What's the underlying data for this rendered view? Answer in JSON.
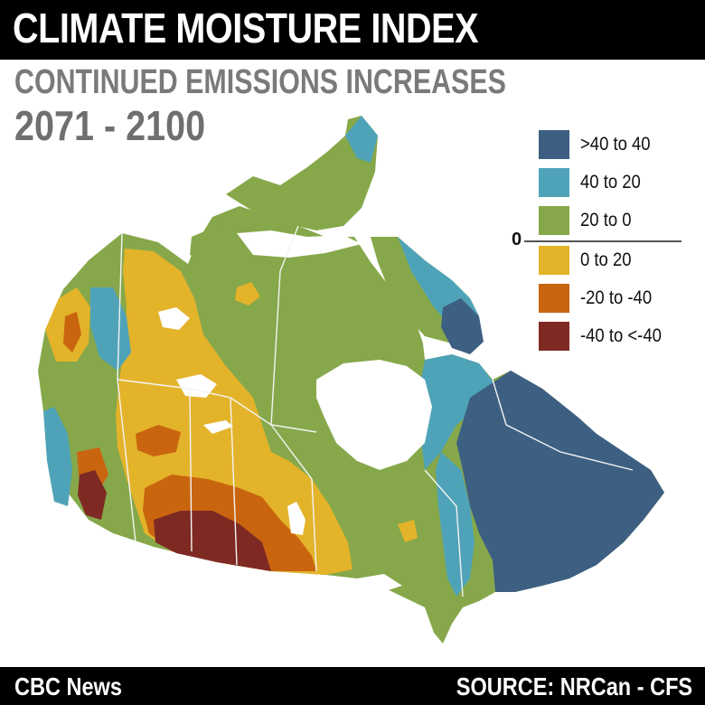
{
  "header": {
    "title": "CLIMATE MOISTURE INDEX",
    "subtitle": "CONTINUED EMISSIONS INCREASES",
    "period": "2071 - 2100"
  },
  "legend": {
    "zero_label": "0",
    "items": [
      {
        "label": ">40 to 40",
        "color": "#3d5f82"
      },
      {
        "label": "40  to 20",
        "color": "#4fa3b8"
      },
      {
        "label": "20 to 0",
        "color": "#86a84a"
      },
      {
        "label": "0 to 20",
        "color": "#e3b32a"
      },
      {
        "label": "-20 to -40",
        "color": "#c9650f"
      },
      {
        "label": "-40 to <-40",
        "color": "#7e2a23"
      }
    ]
  },
  "footer": {
    "left": "CBC News",
    "right": "SOURCE: NRCan - CFS"
  },
  "colors": {
    "water": "#ffffff",
    "border": "#f4f4f4",
    "bar": "#000000"
  }
}
